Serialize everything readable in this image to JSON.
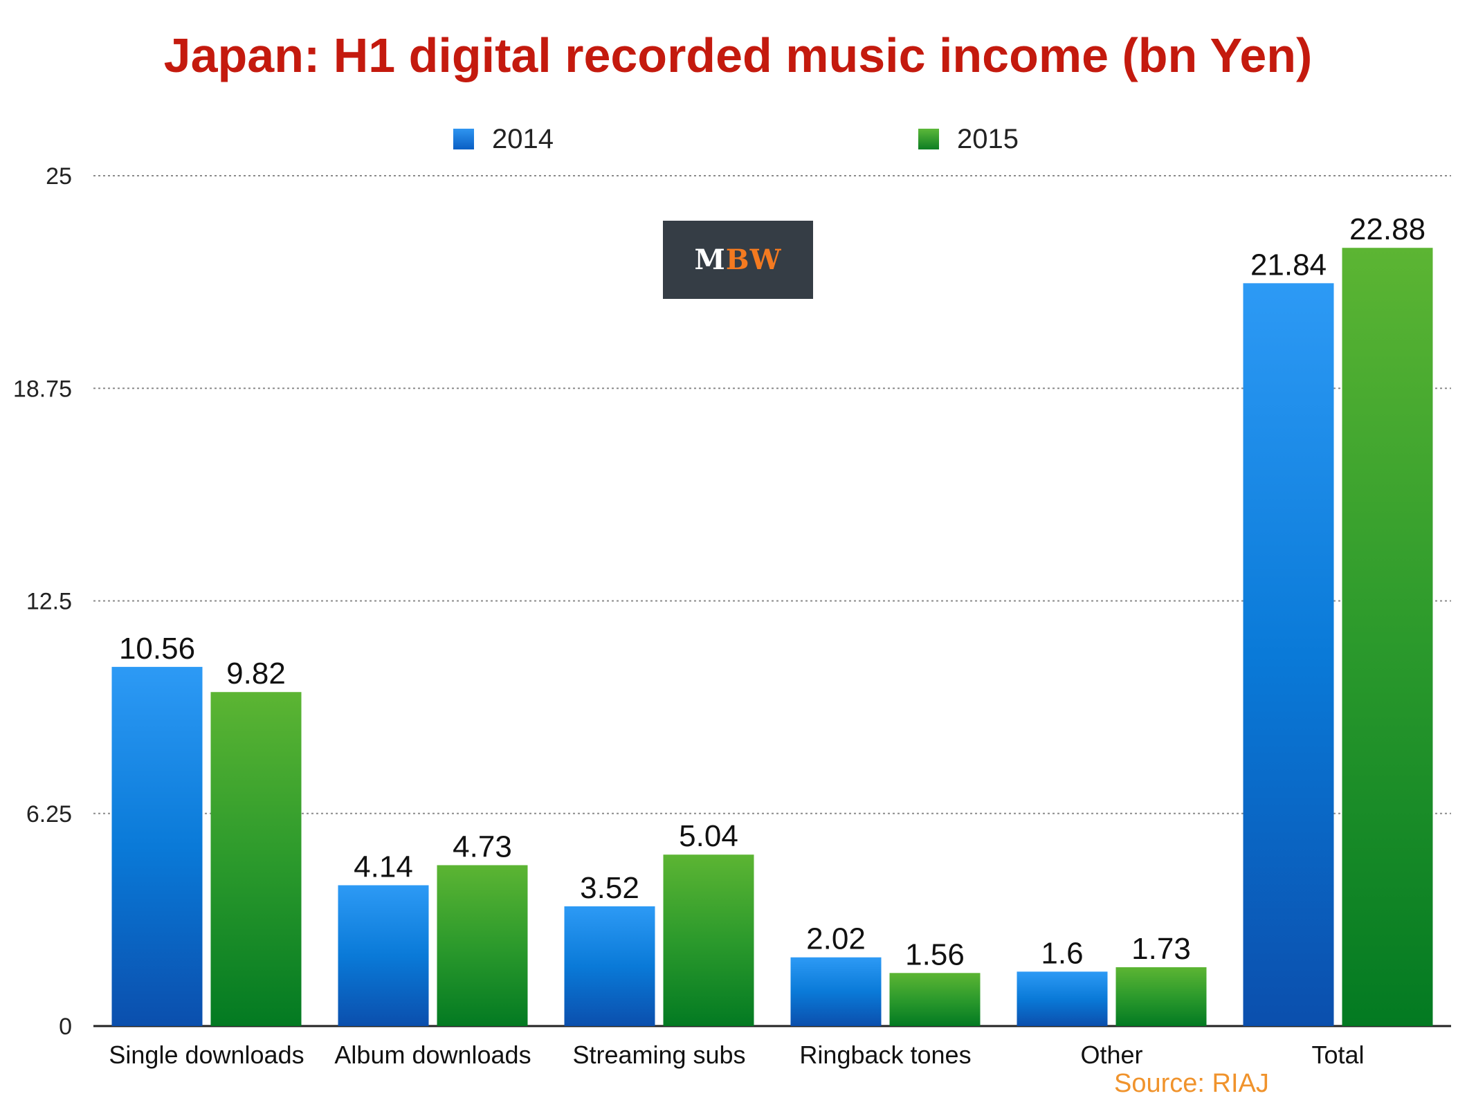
{
  "title": "Japan: H1 digital recorded music income (bn Yen)",
  "source": "Source: RIAJ",
  "logo": {
    "text_m": "M",
    "text_bw": "BW",
    "colors": {
      "m": "#ffffff",
      "bw": "#f47a20",
      "background": "#353d45"
    }
  },
  "colors": {
    "title": "#c41a0e",
    "series_2014": "#1a7ad8",
    "series_2015": "#2a9a2a",
    "source": "#f0932c"
  },
  "chart_data": {
    "type": "bar",
    "title": "Japan: H1 digital recorded music income (bn Yen)",
    "xlabel": "",
    "ylabel": "",
    "ylim": [
      0,
      25
    ],
    "yticks": [
      "0",
      "6.25",
      "12.5",
      "18.75",
      "25"
    ],
    "grid": true,
    "legend_position": "top",
    "categories": [
      "Single downloads",
      "Album downloads",
      "Streaming subs",
      "Ringback tones",
      "Other",
      "Total"
    ],
    "series": [
      {
        "name": "2014",
        "values": [
          10.56,
          4.14,
          3.52,
          2.02,
          1.6,
          21.84
        ],
        "labels": [
          "10.56",
          "4.14",
          "3.52",
          "2.02",
          "1.6",
          "21.84"
        ]
      },
      {
        "name": "2015",
        "values": [
          9.82,
          4.73,
          5.04,
          1.56,
          1.73,
          22.88
        ],
        "labels": [
          "9.82",
          "4.73",
          "5.04",
          "1.56",
          "1.73",
          "22.88"
        ]
      }
    ]
  }
}
